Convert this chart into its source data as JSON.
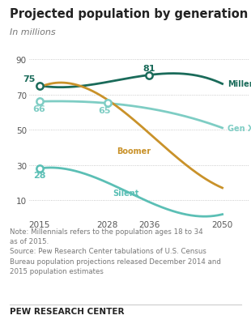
{
  "title": "Projected population by generation",
  "subtitle": "In millions",
  "years": [
    2015,
    2028,
    2036,
    2050
  ],
  "millennial": [
    75,
    77,
    81,
    76
  ],
  "genx": [
    66,
    65,
    62,
    51
  ],
  "boomer": [
    74,
    67,
    48,
    17
  ],
  "silent": [
    28,
    20,
    9,
    2
  ],
  "millennial_color": "#1a6b5a",
  "genx_color": "#7ecdc4",
  "boomer_color": "#c9922a",
  "silent_color": "#5bbfb5",
  "note_text": "Note: Millennials refers to the population ages 18 to 34\nas of 2015.\nSource: Pew Research Center tabulations of U.S. Census\nBureau population projections released December 2014 and\n2015 population estimates",
  "footer_text": "PEW RESEARCH CENTER",
  "bg_color": "#ffffff",
  "grid_color": "#bbbbbb",
  "yticks": [
    10,
    30,
    50,
    70,
    90
  ],
  "ylim": [
    0,
    96
  ],
  "xlim": [
    2013,
    2055
  ]
}
